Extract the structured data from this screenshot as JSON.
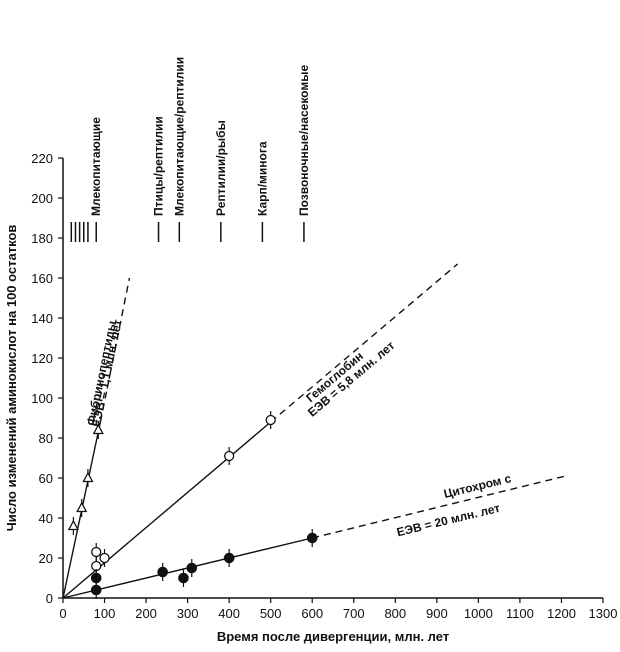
{
  "chart_data": {
    "type": "scatter",
    "xlabel": "Время после дивергенции, млн. лет",
    "ylabel": "Число изменений аминокислот на 100 остатков",
    "xlim": [
      0,
      1300
    ],
    "ylim": [
      0,
      220
    ],
    "xticks": [
      "0",
      "100",
      "200",
      "300",
      "400",
      "500",
      "600",
      "700",
      "800",
      "900",
      "1000",
      "1100",
      "1200",
      "1300"
    ],
    "yticks": [
      "0",
      "20",
      "40",
      "60",
      "80",
      "100",
      "120",
      "140",
      "160",
      "180",
      "200",
      "220"
    ],
    "grid": false,
    "divergence_annotations": [
      {
        "label": "Млекопитающие",
        "x": 80
      },
      {
        "label": "Птицы/рептилии",
        "x": 230
      },
      {
        "label": "Млекопитающие/рептилии",
        "x": 280
      },
      {
        "label": "Рептилии/рыбы",
        "x": 380
      },
      {
        "label": "Карп/минога",
        "x": 480
      },
      {
        "label": "Позвоночные/насекомые",
        "x": 580
      }
    ],
    "extra_mammal_ticks_x": [
      20,
      30,
      40,
      50,
      60
    ],
    "series": [
      {
        "name": "Фибринопептиды",
        "rate_label": "ЕЭВ = 1,1 млн. лет",
        "marker": "triangle-open",
        "points": [
          [
            25,
            36
          ],
          [
            45,
            45
          ],
          [
            60,
            60
          ],
          [
            85,
            84
          ]
        ],
        "fit_solid": [
          [
            0,
            0
          ],
          [
            90,
            88
          ]
        ],
        "fit_dashed": [
          [
            90,
            88
          ],
          [
            160,
            160
          ]
        ]
      },
      {
        "name": "Гемоглобин",
        "rate_label": "ЕЭВ = 5,8 млн. лет",
        "marker": "circle-open",
        "points": [
          [
            80,
            16
          ],
          [
            80,
            23
          ],
          [
            100,
            20
          ],
          [
            400,
            71
          ],
          [
            500,
            89
          ]
        ],
        "fit_solid": [
          [
            0,
            0
          ],
          [
            500,
            88
          ]
        ],
        "fit_dashed": [
          [
            500,
            88
          ],
          [
            950,
            167
          ]
        ]
      },
      {
        "name": "Цитохром c",
        "rate_label": "ЕЭВ = 20 млн. лет",
        "marker": "circle-filled",
        "points": [
          [
            80,
            4
          ],
          [
            80,
            10
          ],
          [
            240,
            13
          ],
          [
            290,
            10
          ],
          [
            310,
            15
          ],
          [
            400,
            20
          ],
          [
            600,
            30
          ]
        ],
        "fit_solid": [
          [
            0,
            0
          ],
          [
            600,
            30
          ]
        ],
        "fit_dashed": [
          [
            600,
            30
          ],
          [
            1210,
            61
          ]
        ]
      }
    ]
  }
}
